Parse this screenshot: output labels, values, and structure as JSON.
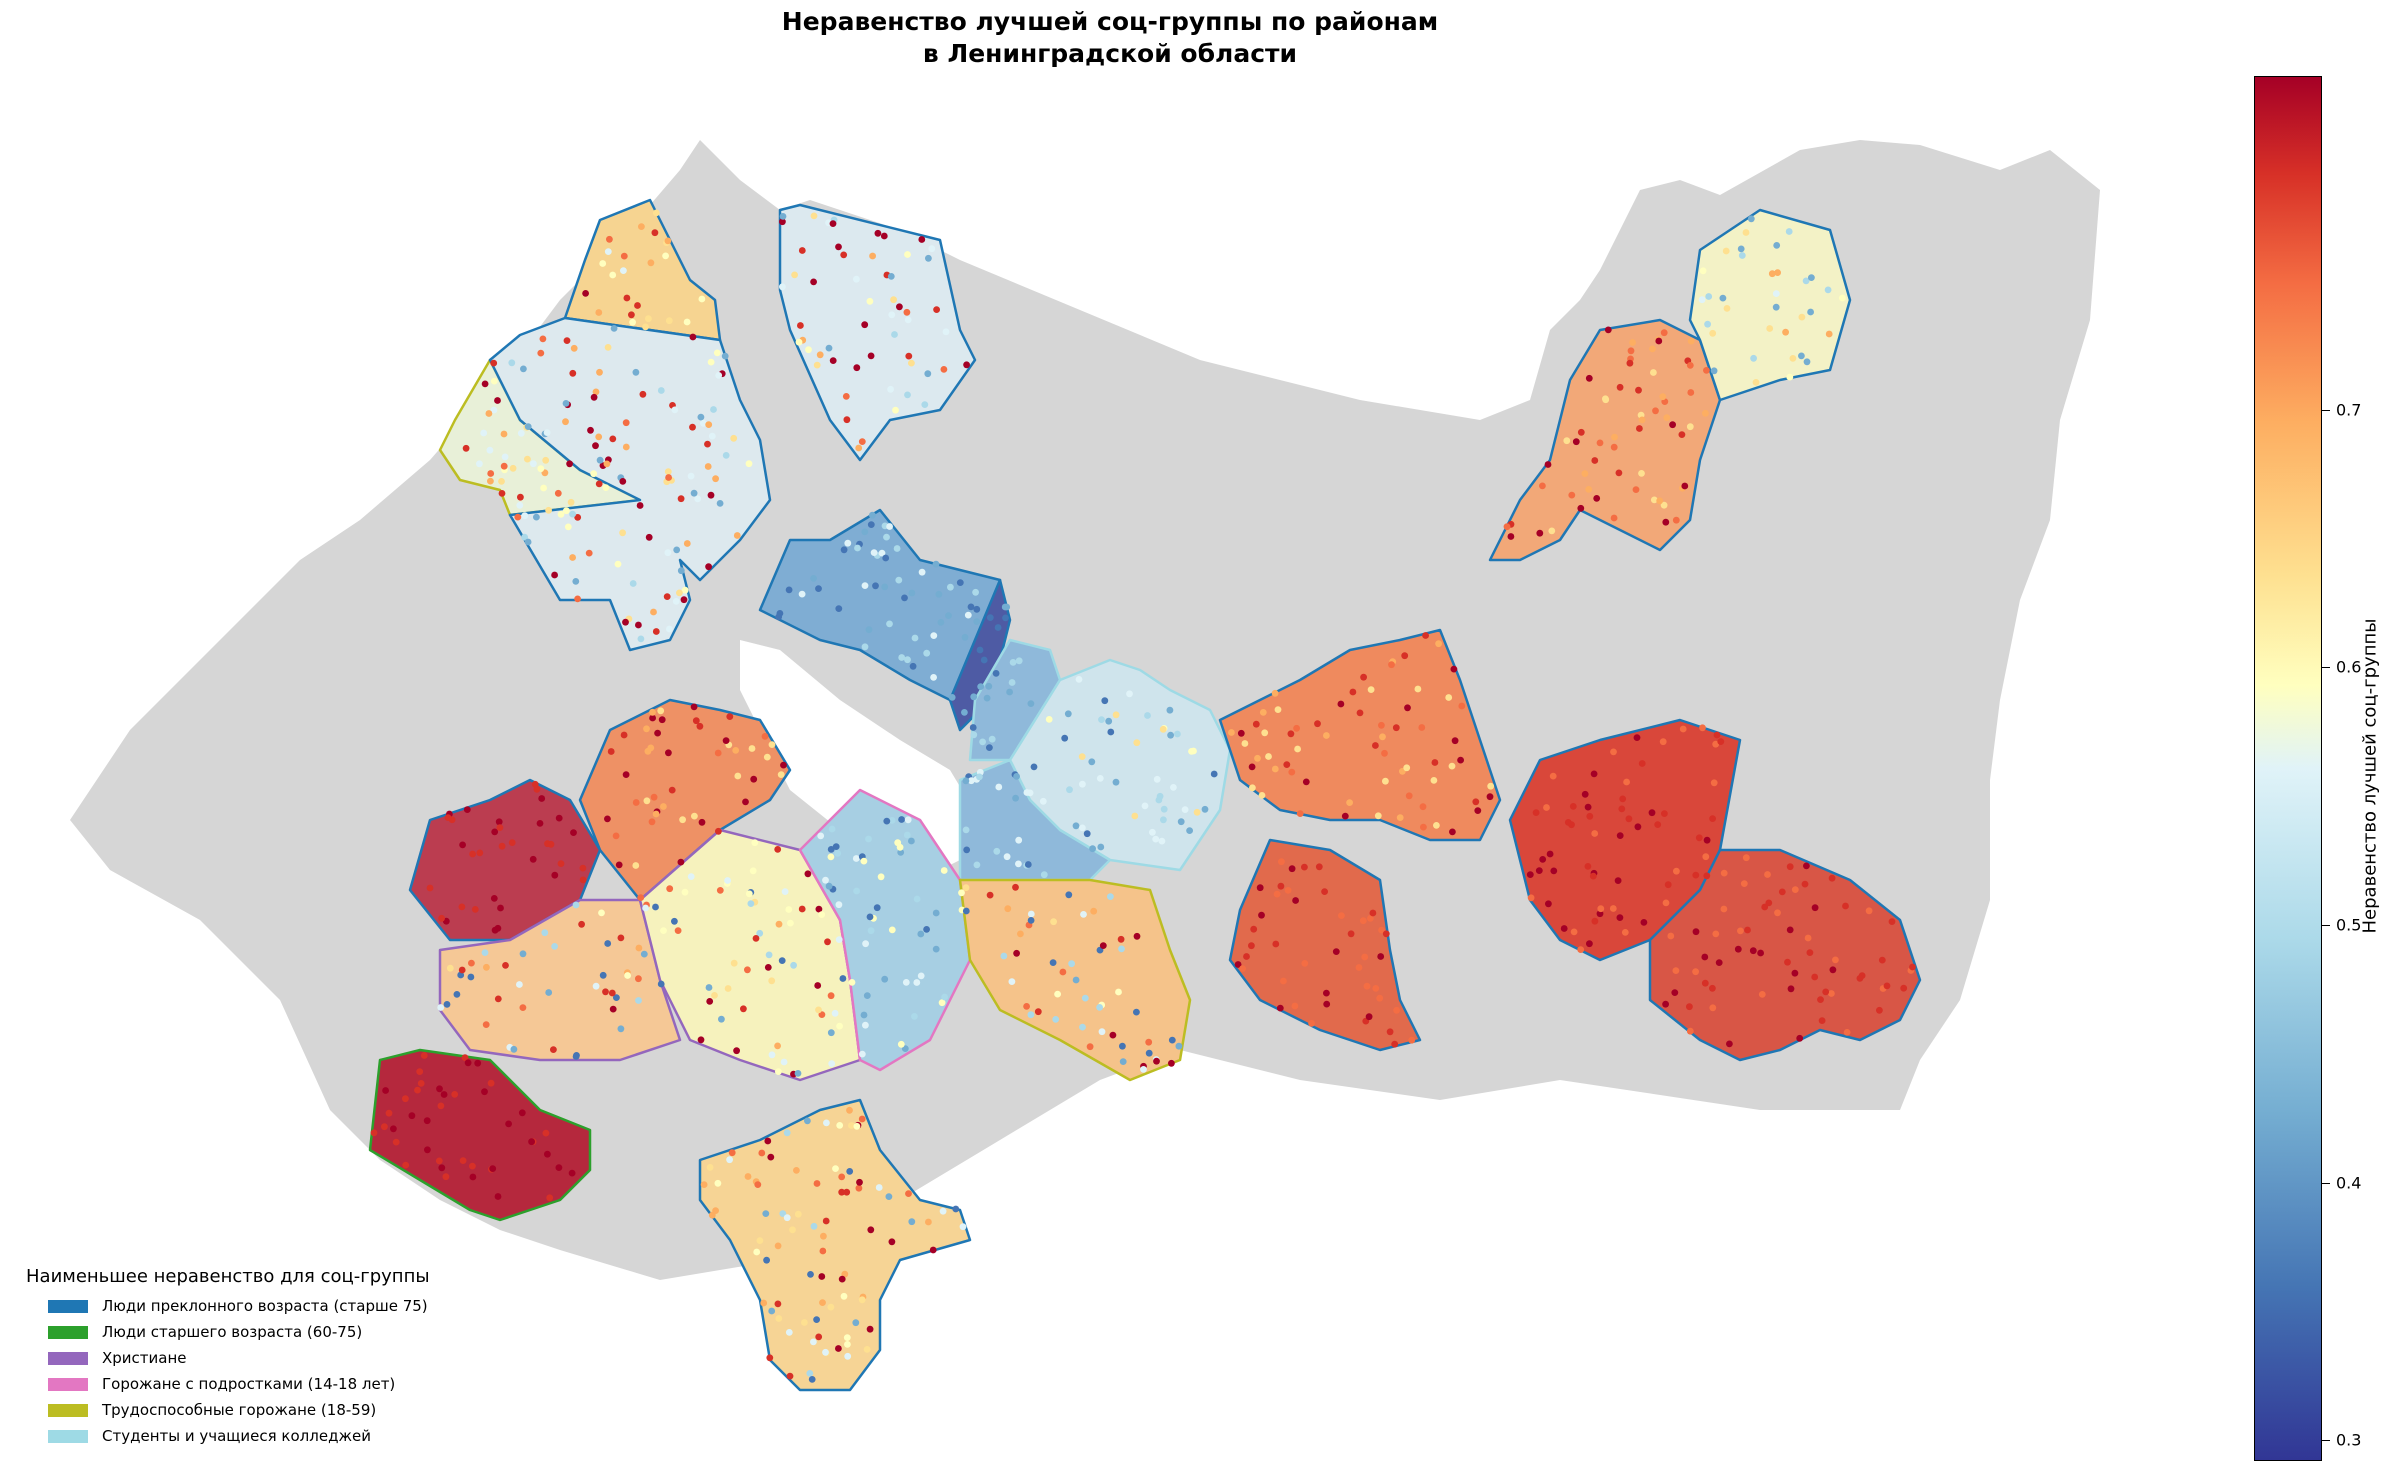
{
  "title_line1": "Неравенство лучшей соц-группы по районам",
  "title_line2": "в Ленинградской области",
  "legend": {
    "title": "Наименьшее неравенство для соц-группы",
    "items": [
      {
        "label": "Люди преклонного возраста (старше 75)",
        "color": "#1f77b4"
      },
      {
        "label": "Люди старшего возраста (60-75)",
        "color": "#2ca02c"
      },
      {
        "label": "Христиане",
        "color": "#9467bd"
      },
      {
        "label": "Горожане с подростками (14-18 лет)",
        "color": "#e377c2"
      },
      {
        "label": "Трудоспособные горожане (18-59)",
        "color": "#bcbd22"
      },
      {
        "label": "Студенты и учащиеся колледжей",
        "color": "#9edae5"
      }
    ]
  },
  "colorbar": {
    "label": "Неравенство лучшей соц-группы",
    "colormap": "RdYlBu_r",
    "range": [
      0.28,
      0.785
    ],
    "ticks": [
      "0.3",
      "0.4",
      "0.5",
      "0.6",
      "0.7"
    ]
  },
  "map": {
    "background_color": "#d6d6d6",
    "lake_color": "#ffffff",
    "districts": [
      {
        "id": "vyborg-north",
        "fill": "#f6d491",
        "edge": "#1f77b4"
      },
      {
        "id": "vyborg-west",
        "fill": "#e8f0d8",
        "edge": "#bcbd22"
      },
      {
        "id": "vyborg-main",
        "fill": "#dde9ee",
        "edge": "#1f77b4"
      },
      {
        "id": "priozersk",
        "fill": "#dce9ef",
        "edge": "#1f77b4"
      },
      {
        "id": "vsevolozhsk-north",
        "fill": "#7fadd3",
        "edge": "#1f77b4"
      },
      {
        "id": "vsevolozhsk-dark",
        "fill": "#4e5ba4",
        "edge": "#1f77b4"
      },
      {
        "id": "vsevolozhsk-south",
        "fill": "#8fb9da",
        "edge": "#9edae5"
      },
      {
        "id": "kirovsk",
        "fill": "#cfe4ec",
        "edge": "#9edae5"
      },
      {
        "id": "volkhov",
        "fill": "#ef8a5e",
        "edge": "#1f77b4"
      },
      {
        "id": "podporozhye",
        "fill": "#f2a878",
        "edge": "#1f77b4"
      },
      {
        "id": "podporozhye-north",
        "fill": "#f3f2c6",
        "edge": "#1f77b4"
      },
      {
        "id": "tikhvin",
        "fill": "#d9473a",
        "edge": "#1f77b4"
      },
      {
        "id": "boksitogorsk",
        "fill": "#d85646",
        "edge": "#1f77b4"
      },
      {
        "id": "kirishi",
        "fill": "#e16a4c",
        "edge": "#1f77b4"
      },
      {
        "id": "kingisepp",
        "fill": "#bb3d50",
        "edge": "#1f77b4"
      },
      {
        "id": "lomonosov",
        "fill": "#ee9165",
        "edge": "#1f77b4"
      },
      {
        "id": "volosovo",
        "fill": "#f5c896",
        "edge": "#9467bd"
      },
      {
        "id": "gatchina",
        "fill": "#f6f2bd",
        "edge": "#9467bd"
      },
      {
        "id": "tosno-west",
        "fill": "#a7cfe3",
        "edge": "#e377c2"
      },
      {
        "id": "tosno",
        "fill": "#f5c38a",
        "edge": "#bcbd22"
      },
      {
        "id": "slantsy",
        "fill": "#b5283d",
        "edge": "#2ca02c"
      },
      {
        "id": "luga",
        "fill": "#f6d495",
        "edge": "#1f77b4"
      }
    ]
  }
}
